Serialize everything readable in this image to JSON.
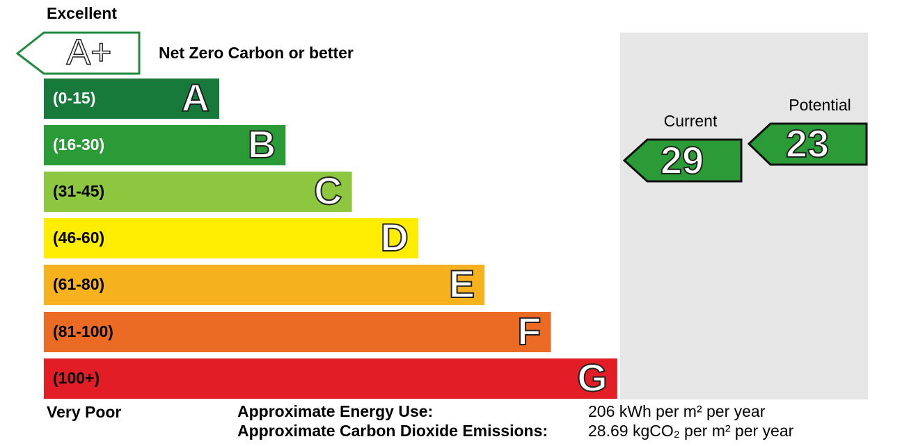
{
  "header": {
    "top_label": "Excellent",
    "bottom_label": "Very Poor"
  },
  "net_zero": {
    "grade": "A+",
    "label": "Net Zero Carbon or better"
  },
  "bands": [
    {
      "range": "(0-15)",
      "grade": "A"
    },
    {
      "range": "(16-30)",
      "grade": "B"
    },
    {
      "range": "(31-45)",
      "grade": "C"
    },
    {
      "range": "(46-60)",
      "grade": "D"
    },
    {
      "range": "(61-80)",
      "grade": "E"
    },
    {
      "range": "(81-100)",
      "grade": "F"
    },
    {
      "range": "(100+)",
      "grade": "G"
    }
  ],
  "current": {
    "label": "Current",
    "value": 29
  },
  "potential": {
    "label": "Potential",
    "value": 23
  },
  "summary": [
    {
      "label": "Approximate Energy Use:",
      "value": "206 kWh per m² per year"
    },
    {
      "label": "Approximate Carbon Dioxide Emissions:",
      "value": "28.69 kgCO₂ per m² per year"
    }
  ]
}
